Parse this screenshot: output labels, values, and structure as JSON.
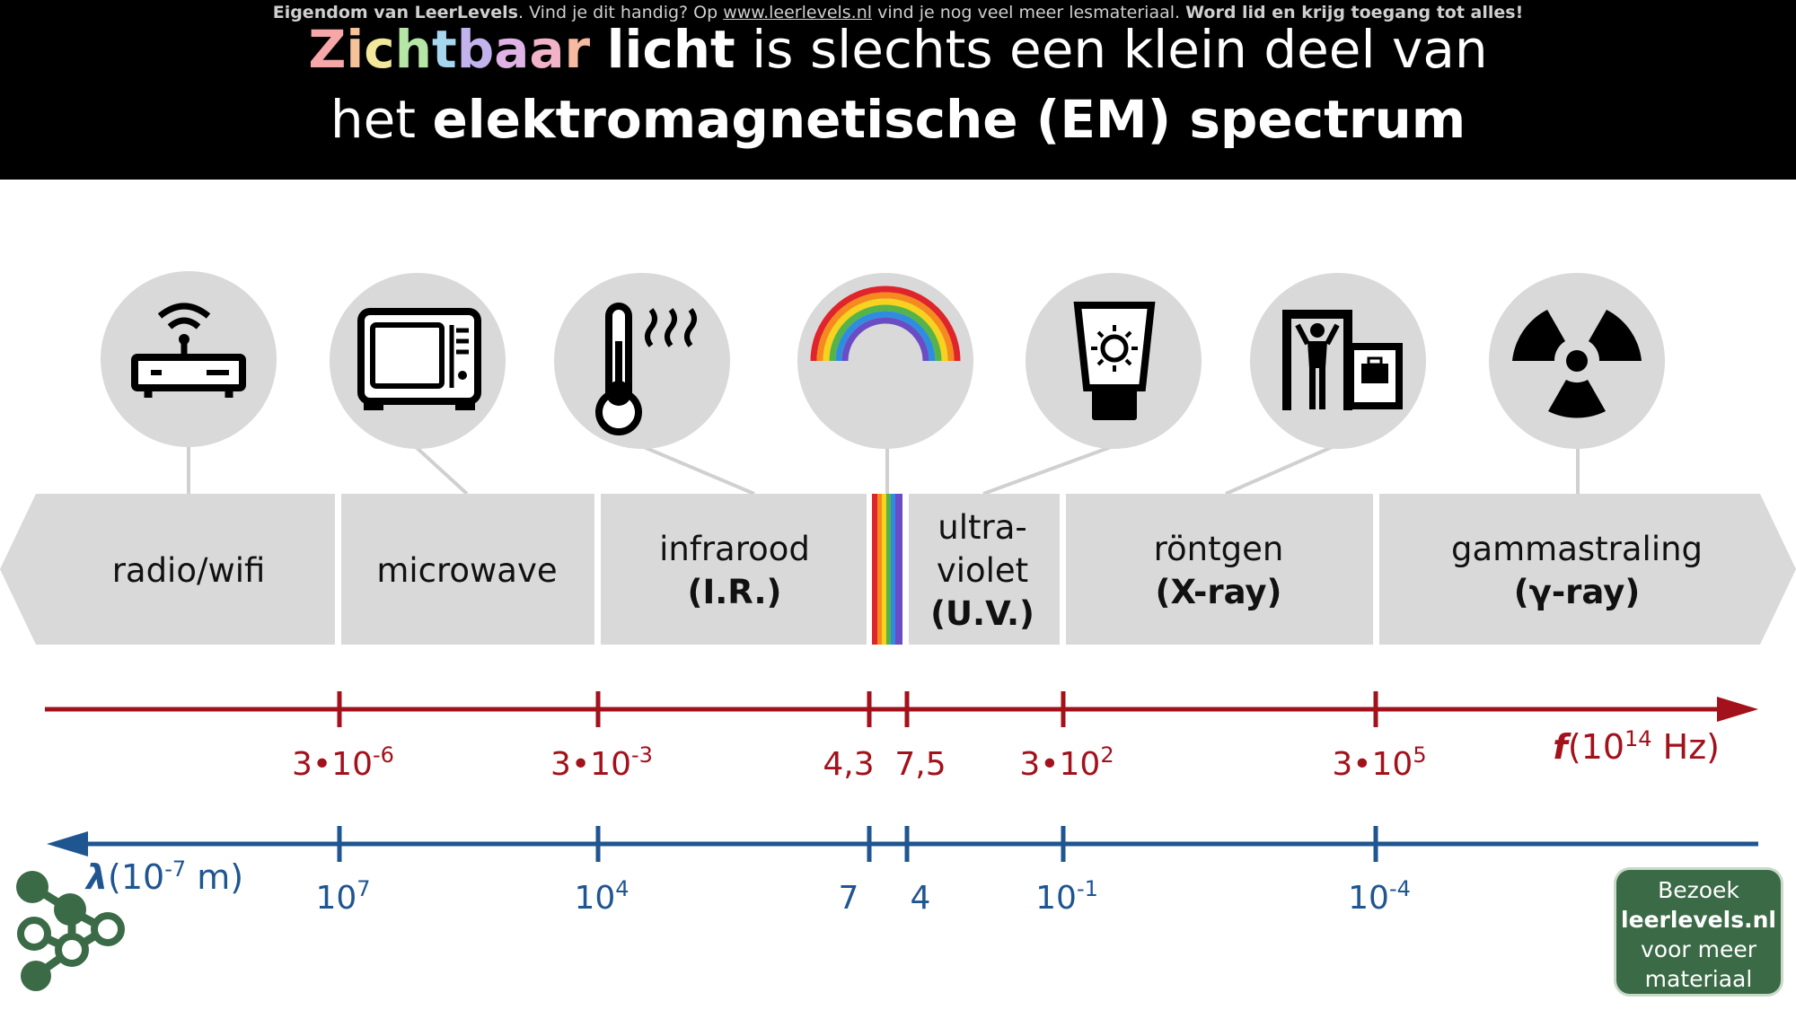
{
  "header": {
    "notice_owner": "Eigendom van LeerLevels",
    "notice_mid": ". Vind je dit handig? Op ",
    "notice_url": "www.leerlevels.nl",
    "notice_after": " vind je nog veel meer lesmateriaal. ",
    "notice_cta": "Word lid en krijg toegang tot alles!",
    "title_word1": "Zichtbaar",
    "title_word1_colors": [
      "#f6a7a7",
      "#f6c29a",
      "#f2e79a",
      "#b6e6a6",
      "#a7d6ef",
      "#c3b3ec",
      "#e0b3e6",
      "#f2b3c9",
      "#f6b9a1"
    ],
    "title_word2": "licht",
    "title_rest1": " is slechts een klein deel van",
    "title_line2_pre": "het ",
    "title_line2_bold": "elektromagnetische (EM) spectrum"
  },
  "bands": [
    {
      "name": "radio-wifi",
      "label": "radio/wifi",
      "sub": ""
    },
    {
      "name": "microwave",
      "label": "microwave",
      "sub": ""
    },
    {
      "name": "infrared",
      "label": "infrarood",
      "sub": "(I.R.)"
    },
    {
      "name": "visible",
      "label": "",
      "sub": ""
    },
    {
      "name": "ultraviolet",
      "label": "ultra-\nviolet",
      "sub": "(U.V.)"
    },
    {
      "name": "xray",
      "label": "röntgen",
      "sub": "(X-ray)"
    },
    {
      "name": "gamma",
      "label": "gammastraling",
      "sub": "(γ-ray)"
    }
  ],
  "icons": [
    "wifi-router-icon",
    "microwave-icon",
    "thermometer-heat-icon",
    "rainbow-icon",
    "sunscreen-icon",
    "xray-scanner-icon",
    "radiation-icon"
  ],
  "frequency_axis": {
    "label_f": "f",
    "label_unit_pre": "(10",
    "label_unit_exp": "14",
    "label_unit_post": " Hz)",
    "ticks": [
      {
        "base": "3•10",
        "exp": "-6"
      },
      {
        "base": "3•10",
        "exp": "-3"
      },
      {
        "base": "4,3",
        "exp": ""
      },
      {
        "base": "7,5",
        "exp": ""
      },
      {
        "base": "3•10",
        "exp": "2"
      },
      {
        "base": "3•10",
        "exp": "5"
      }
    ],
    "color": "#a3111b"
  },
  "wavelength_axis": {
    "label_l": "λ",
    "label_unit_pre": "(10",
    "label_unit_exp": "-7",
    "label_unit_post": " m)",
    "ticks": [
      {
        "base": "10",
        "exp": "7"
      },
      {
        "base": "10",
        "exp": "4"
      },
      {
        "base": "7",
        "exp": ""
      },
      {
        "base": "4",
        "exp": ""
      },
      {
        "base": "10",
        "exp": "-1"
      },
      {
        "base": "10",
        "exp": "-4"
      }
    ],
    "color": "#1f5591"
  },
  "badge": {
    "line1": "Bezoek",
    "line2": "leerlevels.nl",
    "line3": "voor meer",
    "line4": "materiaal"
  },
  "colors": {
    "band_fill": "#d9d9d9",
    "icon_circle": "#d9d9d9",
    "logo_green": "#3b6a46"
  }
}
